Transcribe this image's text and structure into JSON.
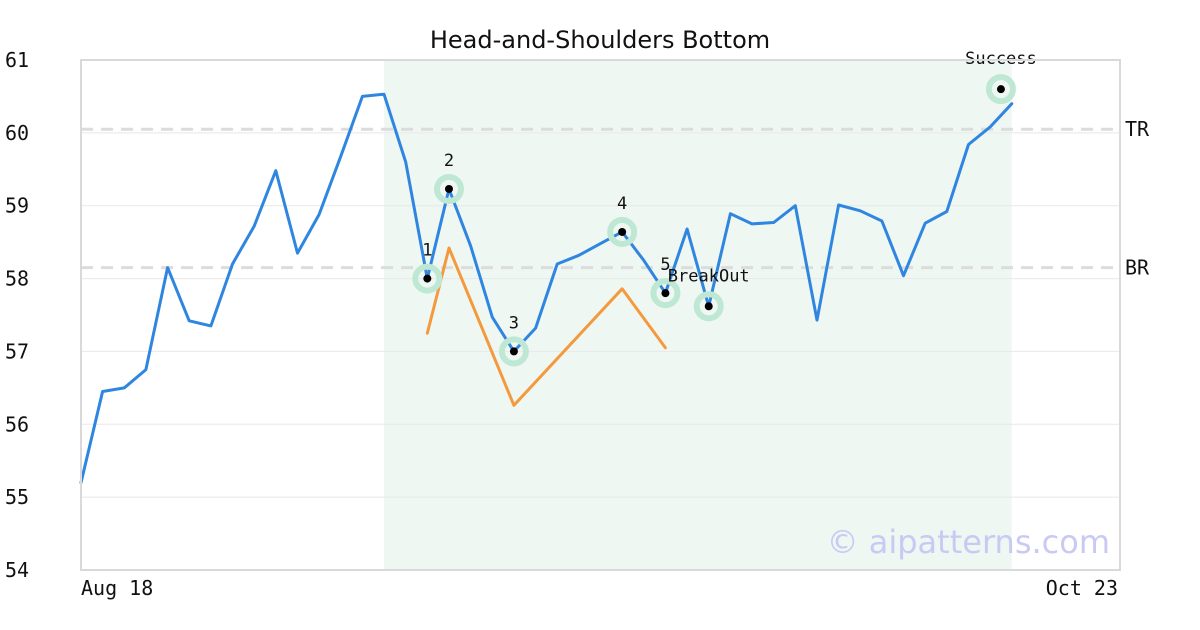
{
  "chart_data": {
    "type": "line",
    "title": "Head-and-Shoulders Bottom",
    "xlabel": "",
    "ylabel": "",
    "ylim": [
      54,
      61
    ],
    "yticks": [
      "54",
      "55",
      "56",
      "57",
      "58",
      "59",
      "60",
      "61"
    ],
    "xtick_labels": {
      "start": "Aug 18",
      "end": "Oct 23"
    },
    "x_range": [
      0,
      48
    ],
    "grid": "horizontal",
    "pattern_region": {
      "x_from": 14,
      "x_to": 43,
      "color": "#eff7f3"
    },
    "series": [
      {
        "color": "#2f86e0",
        "x": [
          0,
          1,
          2,
          3,
          4,
          5,
          6,
          7,
          8,
          9,
          10,
          11,
          12,
          13,
          14,
          15,
          16,
          17,
          18,
          19,
          20,
          21,
          22,
          23,
          24,
          25,
          26,
          27,
          28,
          29,
          30,
          31,
          32,
          33,
          34,
          35,
          36,
          37,
          38,
          39,
          40,
          41,
          42,
          43,
          44,
          45,
          46,
          47,
          48
        ],
        "y": [
          55.2,
          56.45,
          56.5,
          56.75,
          58.15,
          57.42,
          57.35,
          58.2,
          58.72,
          59.48,
          58.35,
          58.88,
          59.68,
          60.5,
          60.53,
          59.6,
          58.0,
          59.23,
          58.45,
          57.47,
          57.0,
          57.32,
          58.2,
          58.32,
          58.48,
          58.64,
          58.25,
          57.8,
          58.68,
          57.62,
          58.89,
          58.75,
          58.77,
          59.0,
          57.43,
          59.01,
          58.93,
          58.79,
          58.04,
          58.76,
          58.92,
          59.84,
          60.08,
          60.4,
          null,
          null,
          null,
          null,
          null
        ]
      },
      {
        "color": "#f39a3e",
        "x": [
          16,
          17,
          20,
          25,
          27
        ],
        "y": [
          57.25,
          58.42,
          56.26,
          57.86,
          57.05
        ]
      }
    ],
    "reference_lines": [
      {
        "name": "TR",
        "y": 60.05
      },
      {
        "name": "BR",
        "y": 58.15
      }
    ],
    "annotations": [
      {
        "label": "1",
        "x": 16,
        "y": 58.0
      },
      {
        "label": "2",
        "x": 17,
        "y": 59.23
      },
      {
        "label": "3",
        "x": 20,
        "y": 57.0
      },
      {
        "label": "4",
        "x": 25,
        "y": 58.64
      },
      {
        "label": "5",
        "x": 27,
        "y": 57.8
      },
      {
        "label": "BreakOut",
        "x": 29,
        "y": 57.62
      },
      {
        "label": "Success",
        "x": 42.5,
        "y": 60.6
      }
    ],
    "watermark": "© aipatterns.com"
  }
}
